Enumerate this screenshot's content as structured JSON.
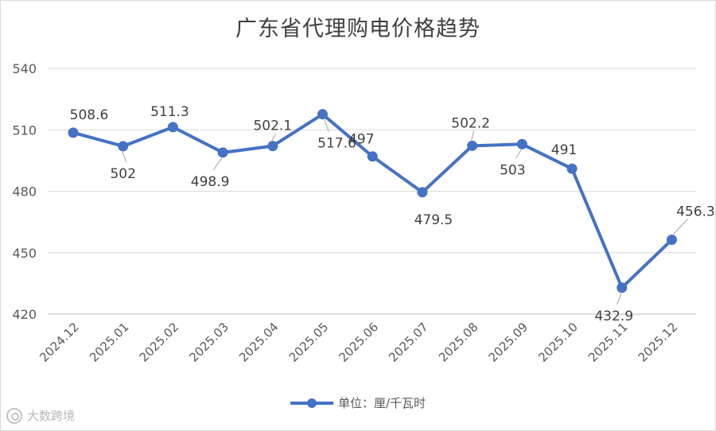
{
  "chart_data": {
    "type": "line",
    "title": "广东省代理购电价格趋势",
    "categories": [
      "2024.12",
      "2025.01",
      "2025.02",
      "2025.03",
      "2025.04",
      "2025.05",
      "2025.06",
      "2025.07",
      "2025.08",
      "2025.09",
      "2025.10",
      "2025.11",
      "2025.12"
    ],
    "series": [
      {
        "name": "单位：厘/千瓦时",
        "values": [
          508.6,
          502,
          511.3,
          498.9,
          502.1,
          517.6,
          497,
          479.5,
          502.2,
          503,
          491,
          432.9,
          456.3
        ],
        "color": "#4472c4"
      }
    ],
    "data_labels": [
      "508.6",
      "502",
      "511.3",
      "498.9",
      "502.1",
      "517.6",
      "497",
      "479.5",
      "502.2",
      "503",
      "491",
      "432.9",
      "456.3"
    ],
    "ylim": [
      420,
      540
    ],
    "yticks": [
      420,
      450,
      480,
      510,
      540
    ],
    "xlabel": "",
    "ylabel": "",
    "grid": true,
    "legend": "bottom"
  },
  "legend_label": "单位：厘/千瓦时",
  "watermark": "大数跨境",
  "watermark_icon": "logo-icon"
}
